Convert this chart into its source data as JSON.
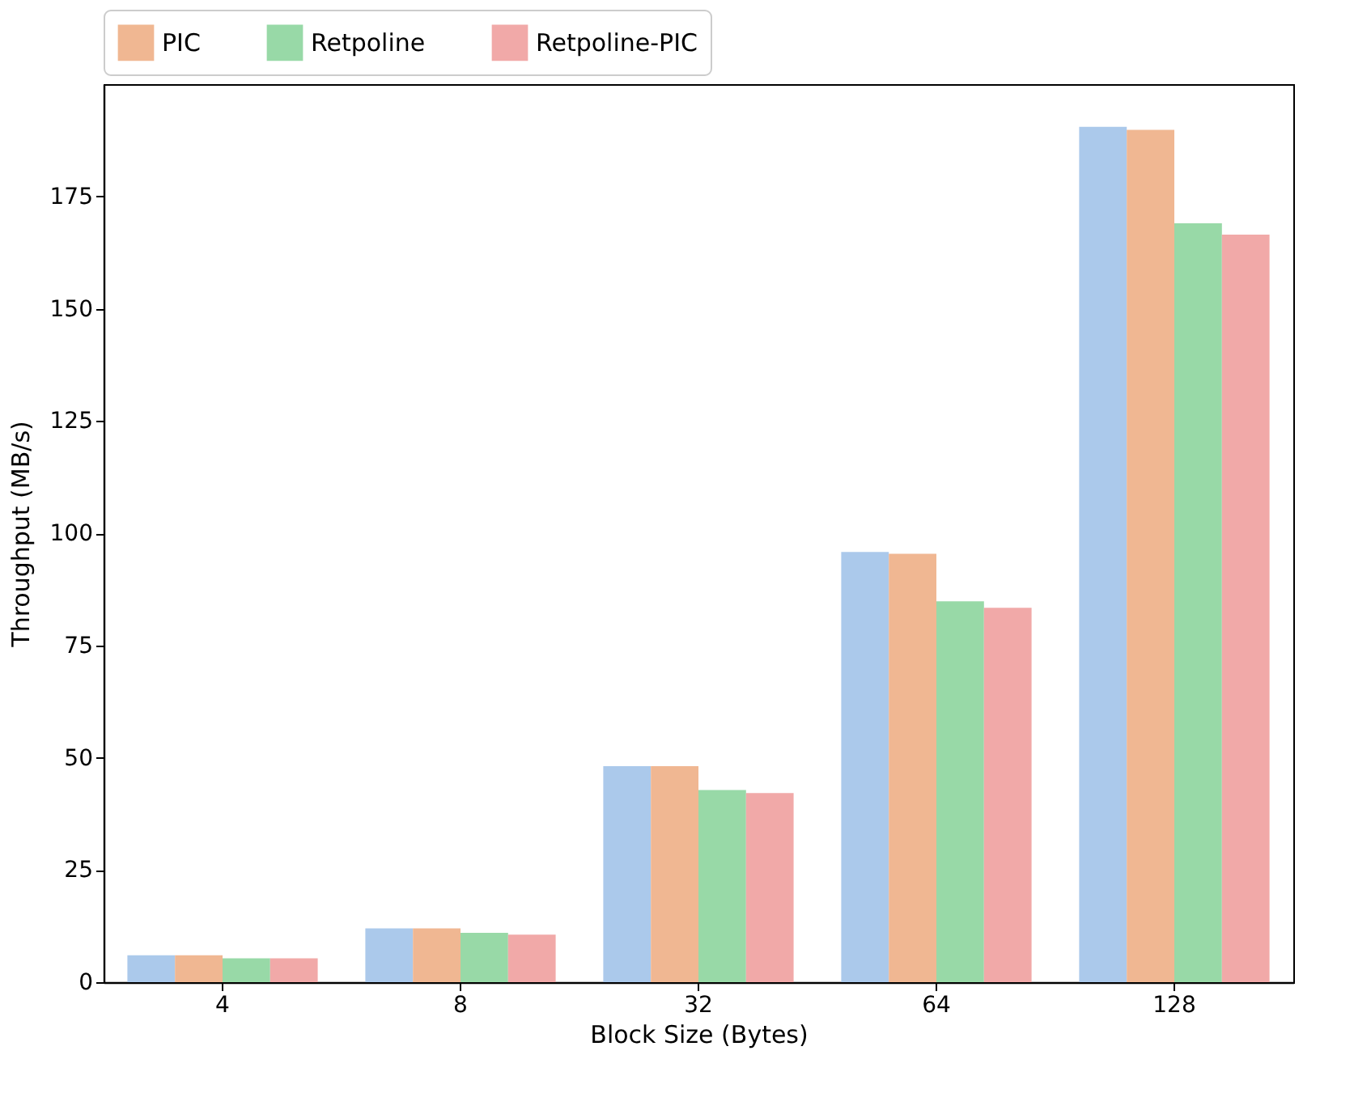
{
  "chart_data": {
    "type": "bar",
    "xlabel": "Block Size (Bytes)",
    "ylabel": "Throughput (MB/s)",
    "categories": [
      "4",
      "8",
      "32",
      "64",
      "128"
    ],
    "series": [
      {
        "color": "#abc9eb",
        "values": [
          6.0,
          12.0,
          48.1,
          95.8,
          190.5
        ]
      },
      {
        "name": "PIC",
        "color": "#f0b792",
        "values": [
          6.0,
          12.0,
          48.1,
          95.4,
          189.8
        ]
      },
      {
        "name": "Retpoline",
        "color": "#98d9a7",
        "values": [
          5.3,
          11.0,
          42.8,
          84.8,
          169.0
        ]
      },
      {
        "name": "Retpoline-PIC",
        "color": "#f1a9a8",
        "values": [
          5.3,
          10.6,
          42.1,
          83.4,
          166.5
        ]
      }
    ],
    "ylim": [
      0,
      200
    ],
    "yticks": [
      0,
      25,
      50,
      75,
      100,
      125,
      150,
      175
    ],
    "grid": false,
    "legend": "top"
  }
}
